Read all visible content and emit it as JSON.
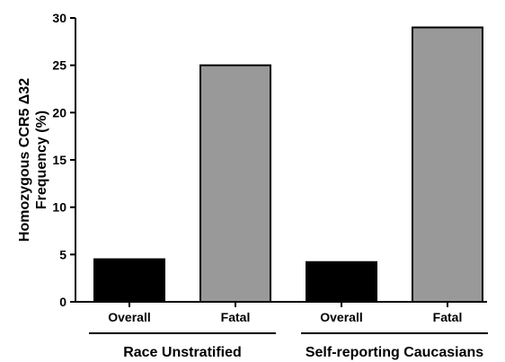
{
  "chart_data": {
    "type": "bar",
    "title": "",
    "ylabel": [
      "Homozygous CCR5 Δ32",
      "Frequency (%)"
    ],
    "xlabel": "",
    "ylim": [
      0,
      30
    ],
    "yticks": [
      "0",
      "5",
      "10",
      "15",
      "20",
      "25",
      "30"
    ],
    "categories": [
      "Overall",
      "Fatal",
      "Overall",
      "Fatal"
    ],
    "values": [
      4.5,
      25,
      4.2,
      29
    ],
    "groups": [
      {
        "label": "Race Unstratified",
        "categories": [
          0,
          1
        ]
      },
      {
        "label": "Self-reporting Caucasians",
        "categories": [
          2,
          3
        ]
      }
    ],
    "colors": {
      "overall": "#000000",
      "fatal": "#999999",
      "axis": "#000000"
    },
    "grid": false,
    "legend": "none"
  }
}
